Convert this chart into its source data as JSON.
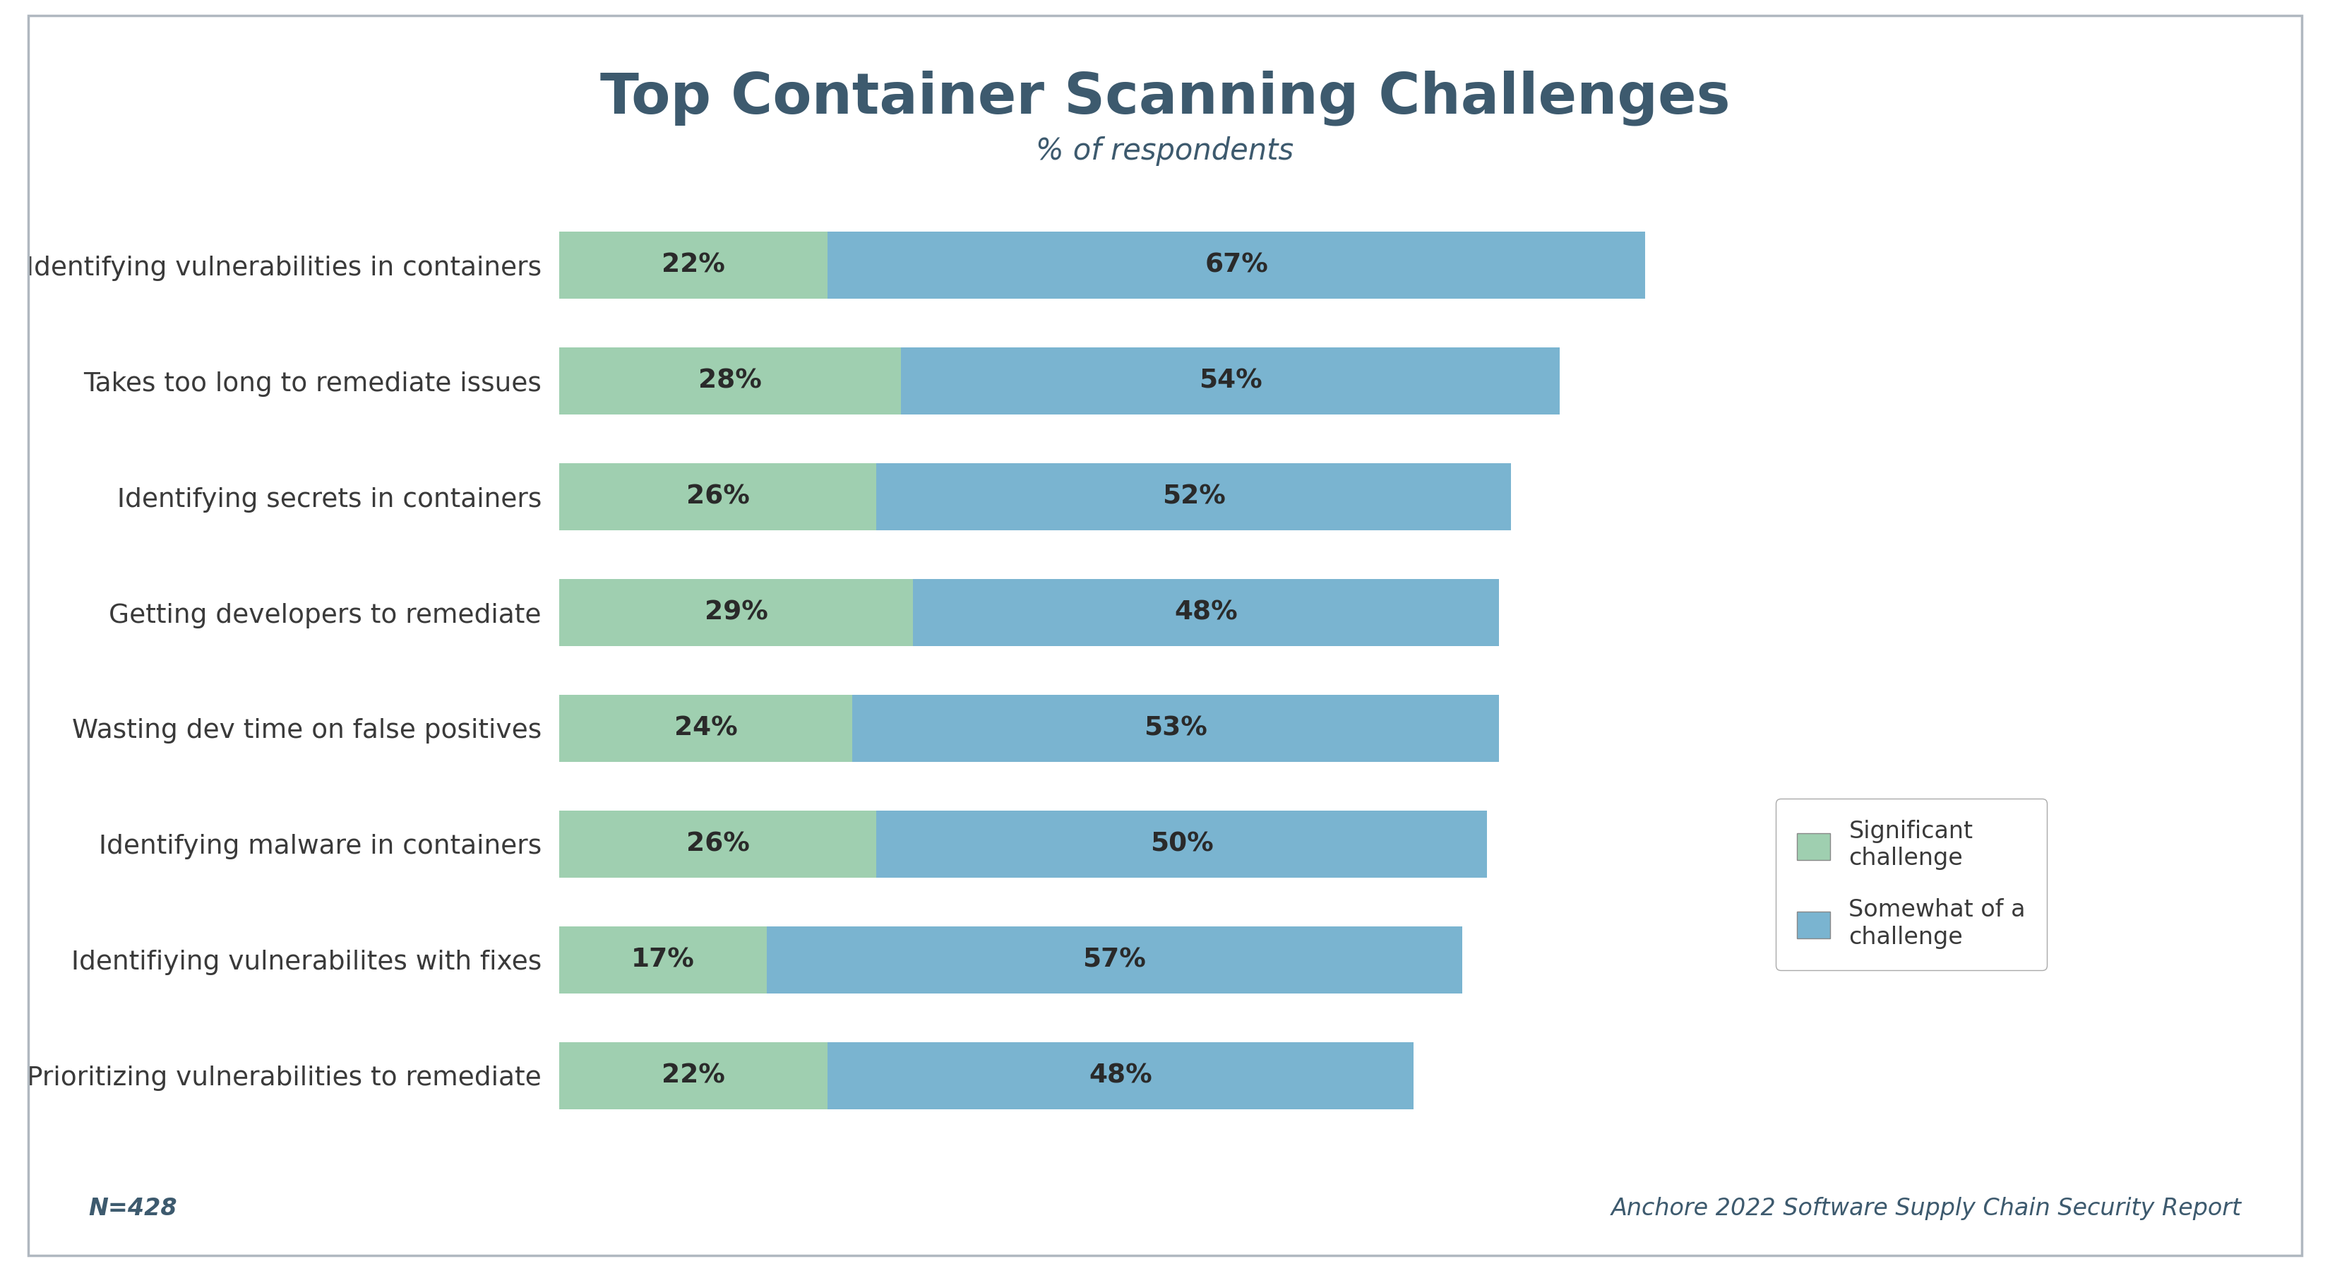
{
  "title": "Top Container Scanning Challenges",
  "subtitle": "% of respondents",
  "categories": [
    "Identifying vulnerabilities in containers",
    "Takes too long to remediate issues",
    "Identifying secrets in containers",
    "Getting developers to remediate",
    "Wasting dev time on false positives",
    "Identifying malware in containers",
    "Identifiying vulnerabilites with fixes",
    "Prioritizing vulnerabilities to remediate"
  ],
  "significant": [
    22,
    28,
    26,
    29,
    24,
    26,
    17,
    22
  ],
  "somewhat": [
    67,
    54,
    52,
    48,
    53,
    50,
    57,
    48
  ],
  "significant_color": "#9fcfb0",
  "somewhat_color": "#7ab4d0",
  "background_color": "#ffffff",
  "title_color": "#3d5a6e",
  "label_color": "#3a3a3a",
  "bar_text_color": "#2a2a2a",
  "footer_color": "#3d5a6e",
  "border_color": "#b0b8c0",
  "footer_left": "N=428",
  "footer_right": "Anchore 2022 Software Supply Chain Security Report",
  "legend_label1": "Significant\nchallenge",
  "legend_label2": "Somewhat of a\nchallenge",
  "title_fontsize": 58,
  "subtitle_fontsize": 30,
  "label_fontsize": 27,
  "bar_label_fontsize": 27,
  "legend_fontsize": 24,
  "footer_fontsize": 24,
  "bar_height": 0.58,
  "xlim": [
    0,
    105
  ]
}
